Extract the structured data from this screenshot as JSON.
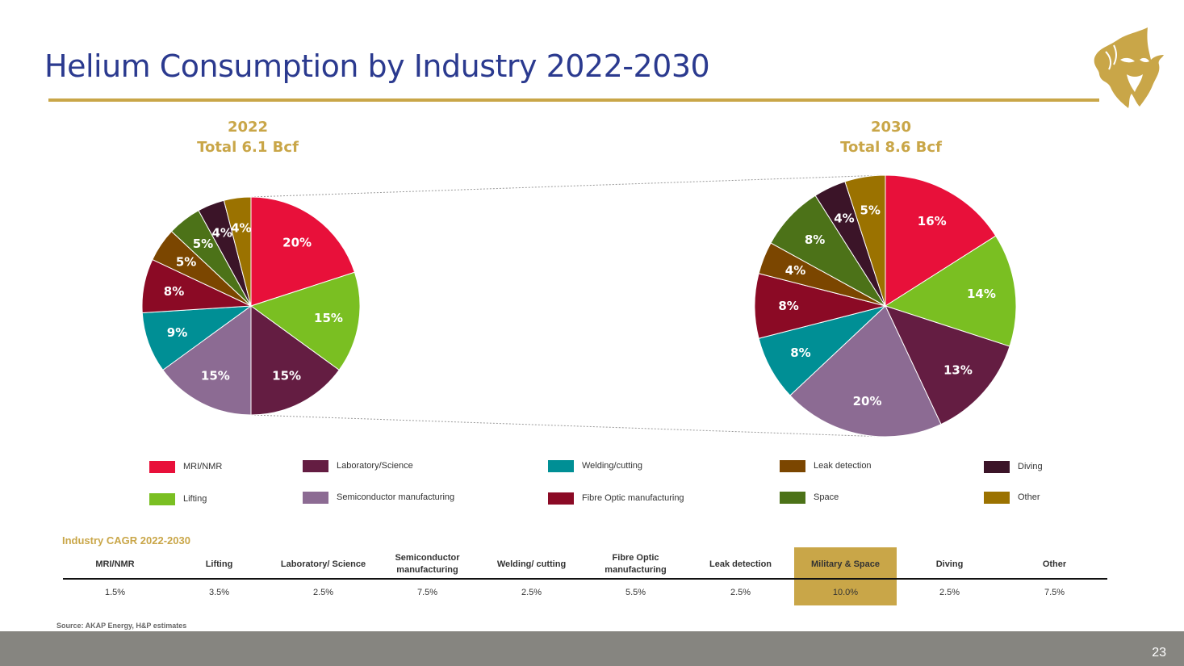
{
  "header": {
    "title": "Helium Consumption by Industry 2022-2030"
  },
  "logo": {
    "icon": "lion-head-icon",
    "color": "#c9a648"
  },
  "colors": {
    "MRI/NMR": "#e8103a",
    "Lifting": "#7abf22",
    "Laboratory/Science": "#641d42",
    "Semiconductor manufacturing": "#8c6b93",
    "Welding/cutting": "#008f95",
    "Fibre Optic manufacturing": "#8b0a25",
    "Leak detection": "#7b4600",
    "Space": "#4c7218",
    "Diving": "#3b1428",
    "Other": "#9b7200"
  },
  "chart_data": [
    {
      "type": "pie",
      "title": "2022",
      "subtitle": "Total 6.1 Bcf",
      "categories": [
        "MRI/NMR",
        "Lifting",
        "Laboratory/Science",
        "Semiconductor manufacturing",
        "Welding/cutting",
        "Fibre Optic manufacturing",
        "Leak detection",
        "Space",
        "Diving",
        "Other"
      ],
      "values": [
        20,
        15,
        15,
        15,
        9,
        8,
        5,
        5,
        4,
        4
      ],
      "labels": [
        "20%",
        "15%",
        "15%",
        "15%",
        "9%",
        "8%",
        "5%",
        "5%",
        "4%",
        "4%"
      ]
    },
    {
      "type": "pie",
      "title": "2030",
      "subtitle": "Total 8.6 Bcf",
      "categories": [
        "MRI/NMR",
        "Lifting",
        "Laboratory/Science",
        "Semiconductor manufacturing",
        "Welding/cutting",
        "Fibre Optic manufacturing",
        "Leak detection",
        "Space",
        "Diving",
        "Other"
      ],
      "values": [
        16,
        14,
        13,
        20,
        8,
        8,
        4,
        8,
        4,
        5
      ],
      "labels": [
        "16%",
        "14%",
        "13%",
        "20%",
        "8%",
        "8%",
        "4%",
        "8%",
        "4%",
        "5%"
      ]
    }
  ],
  "legend": [
    {
      "label": "MRI/NMR"
    },
    {
      "label": "Lifting"
    },
    {
      "label": "Laboratory/Science"
    },
    {
      "label": "Semiconductor manufacturing"
    },
    {
      "label": "Welding/cutting"
    },
    {
      "label": "Fibre Optic manufacturing"
    },
    {
      "label": "Leak detection"
    },
    {
      "label": "Space"
    },
    {
      "label": "Diving"
    },
    {
      "label": "Other"
    }
  ],
  "cagr": {
    "title": "Industry CAGR 2022-2030",
    "columns": [
      {
        "header": "MRI/NMR",
        "value": "1.5%"
      },
      {
        "header": "Lifting",
        "value": "3.5%"
      },
      {
        "header": "Laboratory/ Science",
        "value": "2.5%"
      },
      {
        "header": "Semiconductor manufacturing",
        "value": "7.5%"
      },
      {
        "header": "Welding/ cutting",
        "value": "2.5%"
      },
      {
        "header": "Fibre Optic manufacturing",
        "value": "5.5%"
      },
      {
        "header": "Leak detection",
        "value": "2.5%"
      },
      {
        "header": "Military & Space",
        "value": "10.0%",
        "highlight": true
      },
      {
        "header": "Diving",
        "value": "2.5%"
      },
      {
        "header": "Other",
        "value": "7.5%"
      }
    ]
  },
  "source": "Source: AKAP Energy, H&P estimates",
  "footer": {
    "page_number": "23"
  }
}
